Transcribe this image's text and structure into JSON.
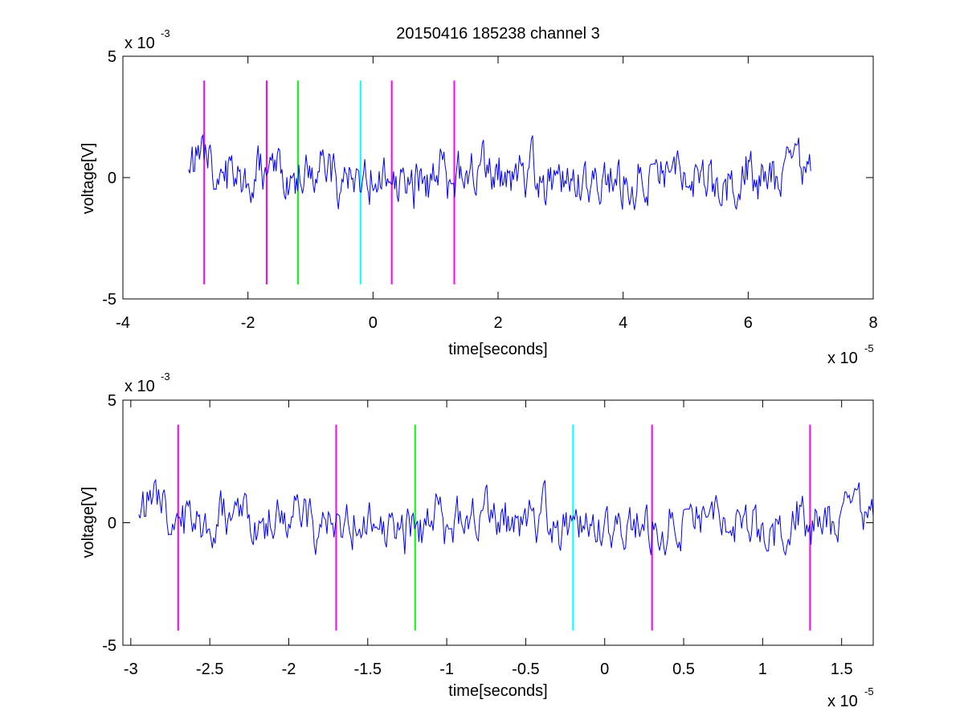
{
  "figure": {
    "title": "20150416 185238 channel 3",
    "background": "#ffffff"
  },
  "colors": {
    "signal": "#0000ff",
    "magenta": "#ff00ff",
    "green": "#00ff00",
    "cyan": "#00ffff",
    "axes": "#000000"
  },
  "chart_data": [
    {
      "type": "line",
      "title": "20150416 185238 channel 3",
      "xlabel": "time[seconds]",
      "ylabel": "voltage[V]",
      "x_exponent_label": "x 10",
      "x_exponent": "-5",
      "y_exponent_label": "x 10",
      "y_exponent": "-3",
      "xlim": [
        -4e-05,
        8e-05
      ],
      "ylim": [
        -0.005,
        0.005
      ],
      "x_ticks": [
        -4e-05,
        -2e-05,
        0,
        2e-05,
        4e-05,
        6e-05,
        8e-05
      ],
      "x_tick_labels": [
        "-4",
        "-2",
        "0",
        "2",
        "4",
        "6",
        "8"
      ],
      "y_ticks": [
        -0.005,
        0,
        0.005
      ],
      "y_tick_labels": [
        "-5",
        "0",
        "5"
      ],
      "grid": false,
      "signal": {
        "x_start": -2.95e-05,
        "x_end": 7e-05,
        "seed": 20150416,
        "n_points": 520,
        "amplitude_max": 0.0037
      },
      "markers": [
        {
          "x": -2.7e-05,
          "y0": -0.0044,
          "y1": 0.004,
          "color": "#ff00ff"
        },
        {
          "x": -1.7e-05,
          "y0": -0.0044,
          "y1": 0.004,
          "color": "#ff00ff"
        },
        {
          "x": -1.2e-05,
          "y0": -0.0044,
          "y1": 0.004,
          "color": "#00ff00"
        },
        {
          "x": -2e-06,
          "y0": -0.0044,
          "y1": 0.004,
          "color": "#00ffff"
        },
        {
          "x": 3e-06,
          "y0": -0.0044,
          "y1": 0.004,
          "color": "#ff00ff"
        },
        {
          "x": 1.3e-05,
          "y0": -0.0044,
          "y1": 0.004,
          "color": "#ff00ff"
        }
      ]
    },
    {
      "type": "line",
      "title": "",
      "xlabel": "time[seconds]",
      "ylabel": "voltage[V]",
      "x_exponent_label": "x 10",
      "x_exponent": "-5",
      "y_exponent_label": "x 10",
      "y_exponent": "-3",
      "xlim": [
        -3.05e-05,
        1.7e-05
      ],
      "ylim": [
        -0.005,
        0.005
      ],
      "x_ticks": [
        -3e-05,
        -2.5e-05,
        -2e-05,
        -1.5e-05,
        -1e-05,
        -5e-06,
        0,
        5e-06,
        1e-05,
        1.5e-05
      ],
      "x_tick_labels": [
        "-3",
        "-2.5",
        "-2",
        "-1.5",
        "-1",
        "-0.5",
        "0",
        "0.5",
        "1",
        "1.5"
      ],
      "y_ticks": [
        -0.005,
        0,
        0.005
      ],
      "y_tick_labels": [
        "-5",
        "0",
        "5"
      ],
      "grid": false,
      "signal": {
        "x_start": -2.95e-05,
        "x_end": 1.7e-05,
        "seed": 20150416,
        "n_points": 520,
        "amplitude_max": 0.0037
      },
      "markers": [
        {
          "x": -2.7e-05,
          "y0": -0.0044,
          "y1": 0.004,
          "color": "#ff00ff"
        },
        {
          "x": -1.7e-05,
          "y0": -0.0044,
          "y1": 0.004,
          "color": "#ff00ff"
        },
        {
          "x": -1.2e-05,
          "y0": -0.0044,
          "y1": 0.004,
          "color": "#00ff00"
        },
        {
          "x": -2e-06,
          "y0": -0.0044,
          "y1": 0.004,
          "color": "#00ffff"
        },
        {
          "x": 3e-06,
          "y0": -0.0044,
          "y1": 0.004,
          "color": "#ff00ff"
        },
        {
          "x": 1.3e-05,
          "y0": -0.0044,
          "y1": 0.004,
          "color": "#ff00ff"
        }
      ]
    }
  ]
}
